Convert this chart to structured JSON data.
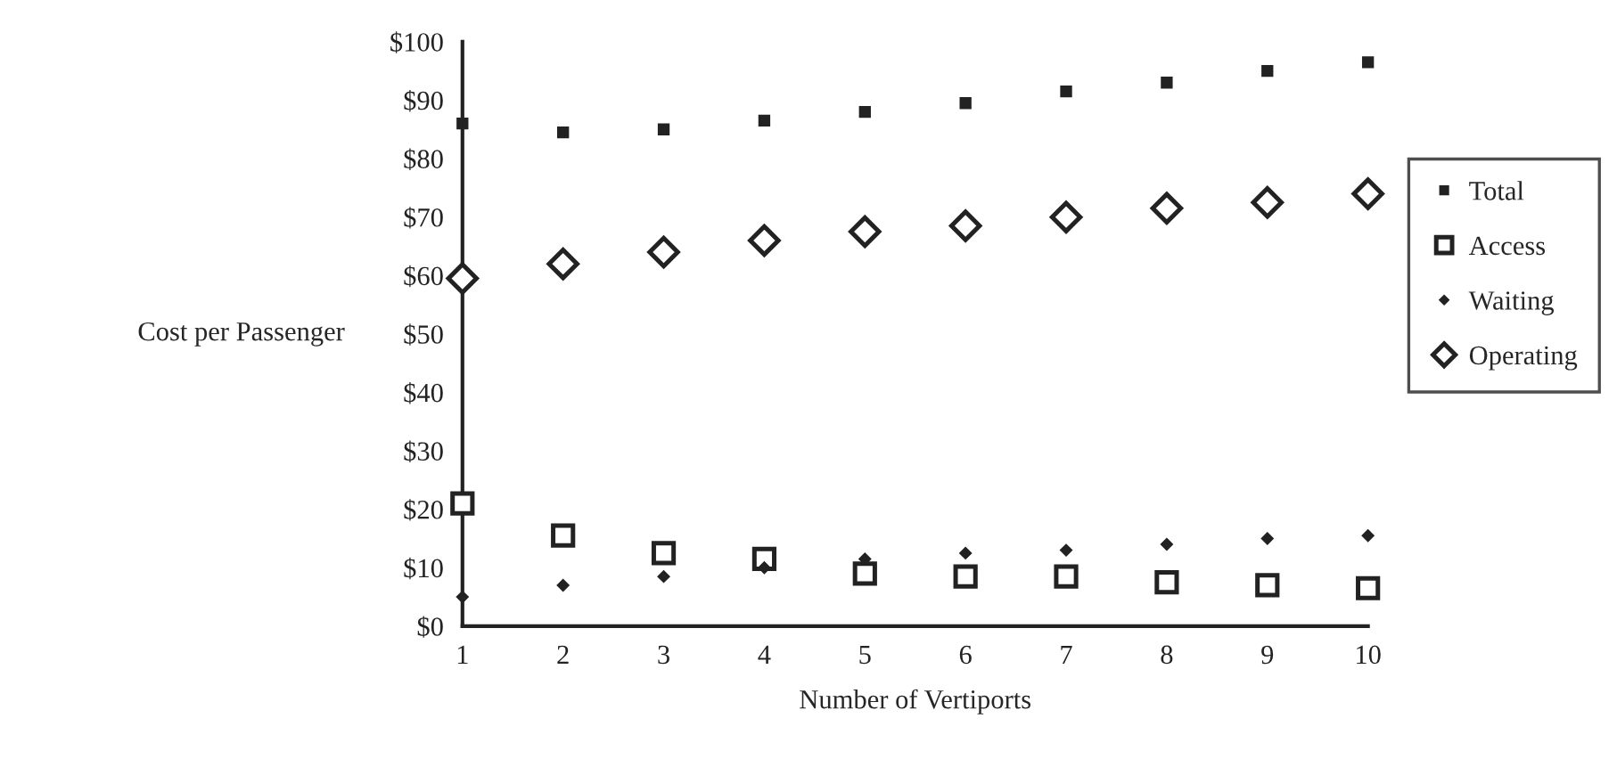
{
  "chart_data": {
    "type": "scatter",
    "xlabel": "Number of Vertiports",
    "ylabel": "Cost per Passenger",
    "x": [
      1,
      2,
      3,
      4,
      5,
      6,
      7,
      8,
      9,
      10
    ],
    "series": [
      {
        "name": "Total",
        "color": "#222222",
        "marker": "square",
        "values": [
          86,
          84.5,
          85,
          86.5,
          88,
          89.5,
          91.5,
          93,
          95,
          96.5
        ]
      },
      {
        "name": "Access",
        "color": "#222222",
        "marker": "square_open",
        "values": [
          21,
          15.5,
          12.5,
          11.5,
          9,
          8.5,
          8.5,
          7.5,
          7,
          6.5
        ]
      },
      {
        "name": "Waiting",
        "color": "#222222",
        "marker": "diamond_small",
        "values": [
          5,
          7,
          8.5,
          10,
          11.5,
          12.5,
          13,
          14,
          15,
          15.5
        ]
      },
      {
        "name": "Operating",
        "color": "#222222",
        "marker": "diamond_open",
        "values": [
          59.5,
          62,
          64,
          66,
          67.5,
          68.5,
          70,
          71.5,
          72.5,
          74
        ]
      }
    ],
    "xlim": [
      1,
      10
    ],
    "xticks": [
      1,
      2,
      3,
      4,
      5,
      6,
      7,
      8,
      9,
      10
    ],
    "ylim": [
      0,
      100
    ],
    "yticks": [
      {
        "value": 0,
        "label": "$0"
      },
      {
        "value": 10,
        "label": "$10"
      },
      {
        "value": 20,
        "label": "$20"
      },
      {
        "value": 30,
        "label": "$30"
      },
      {
        "value": 40,
        "label": "$40"
      },
      {
        "value": 50,
        "label": "$50"
      },
      {
        "value": 60,
        "label": "$60"
      },
      {
        "value": 70,
        "label": "$70"
      },
      {
        "value": 80,
        "label": "$80"
      },
      {
        "value": 90,
        "label": "$90"
      },
      {
        "value": 100,
        "label": "$100"
      }
    ],
    "grid": false,
    "legend": "right"
  }
}
